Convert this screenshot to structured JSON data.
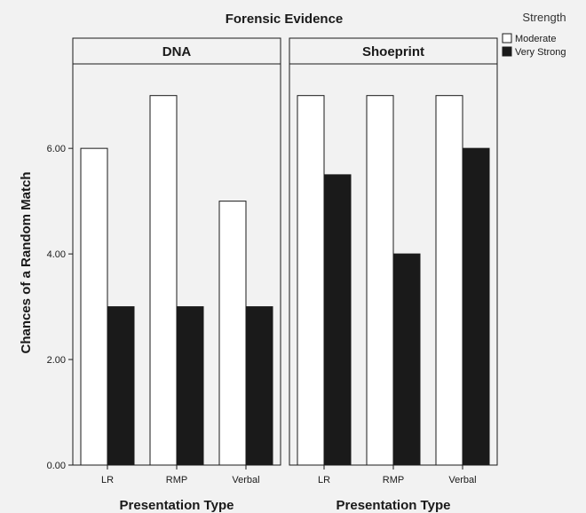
{
  "chart_data": {
    "type": "bar",
    "title": "Forensic Evidence",
    "ylabel": "Chances of a Random Match",
    "xlabel": "Presentation Type",
    "ylim": [
      0,
      7.6
    ],
    "yticks": [
      "0.00",
      "2.00",
      "4.00",
      "6.00"
    ],
    "categories": [
      "LR",
      "RMP",
      "Verbal"
    ],
    "legend": {
      "title": "Strength",
      "placement": "top-right",
      "entries": [
        "Moderate",
        "Very Strong"
      ]
    },
    "series_colors": {
      "Moderate": "#ffffff",
      "Very Strong": "#1a1a1a"
    },
    "panels": [
      {
        "title": "DNA",
        "xlabel": "Presentation Type",
        "series": [
          {
            "name": "Moderate",
            "values": [
              6,
              7,
              5
            ]
          },
          {
            "name": "Very Strong",
            "values": [
              3,
              3,
              3
            ]
          }
        ]
      },
      {
        "title": "Shoeprint",
        "xlabel": "Presentation Type",
        "series": [
          {
            "name": "Moderate",
            "values": [
              7,
              7,
              7
            ]
          },
          {
            "name": "Very Strong",
            "values": [
              5.5,
              4,
              6
            ]
          }
        ]
      }
    ]
  }
}
